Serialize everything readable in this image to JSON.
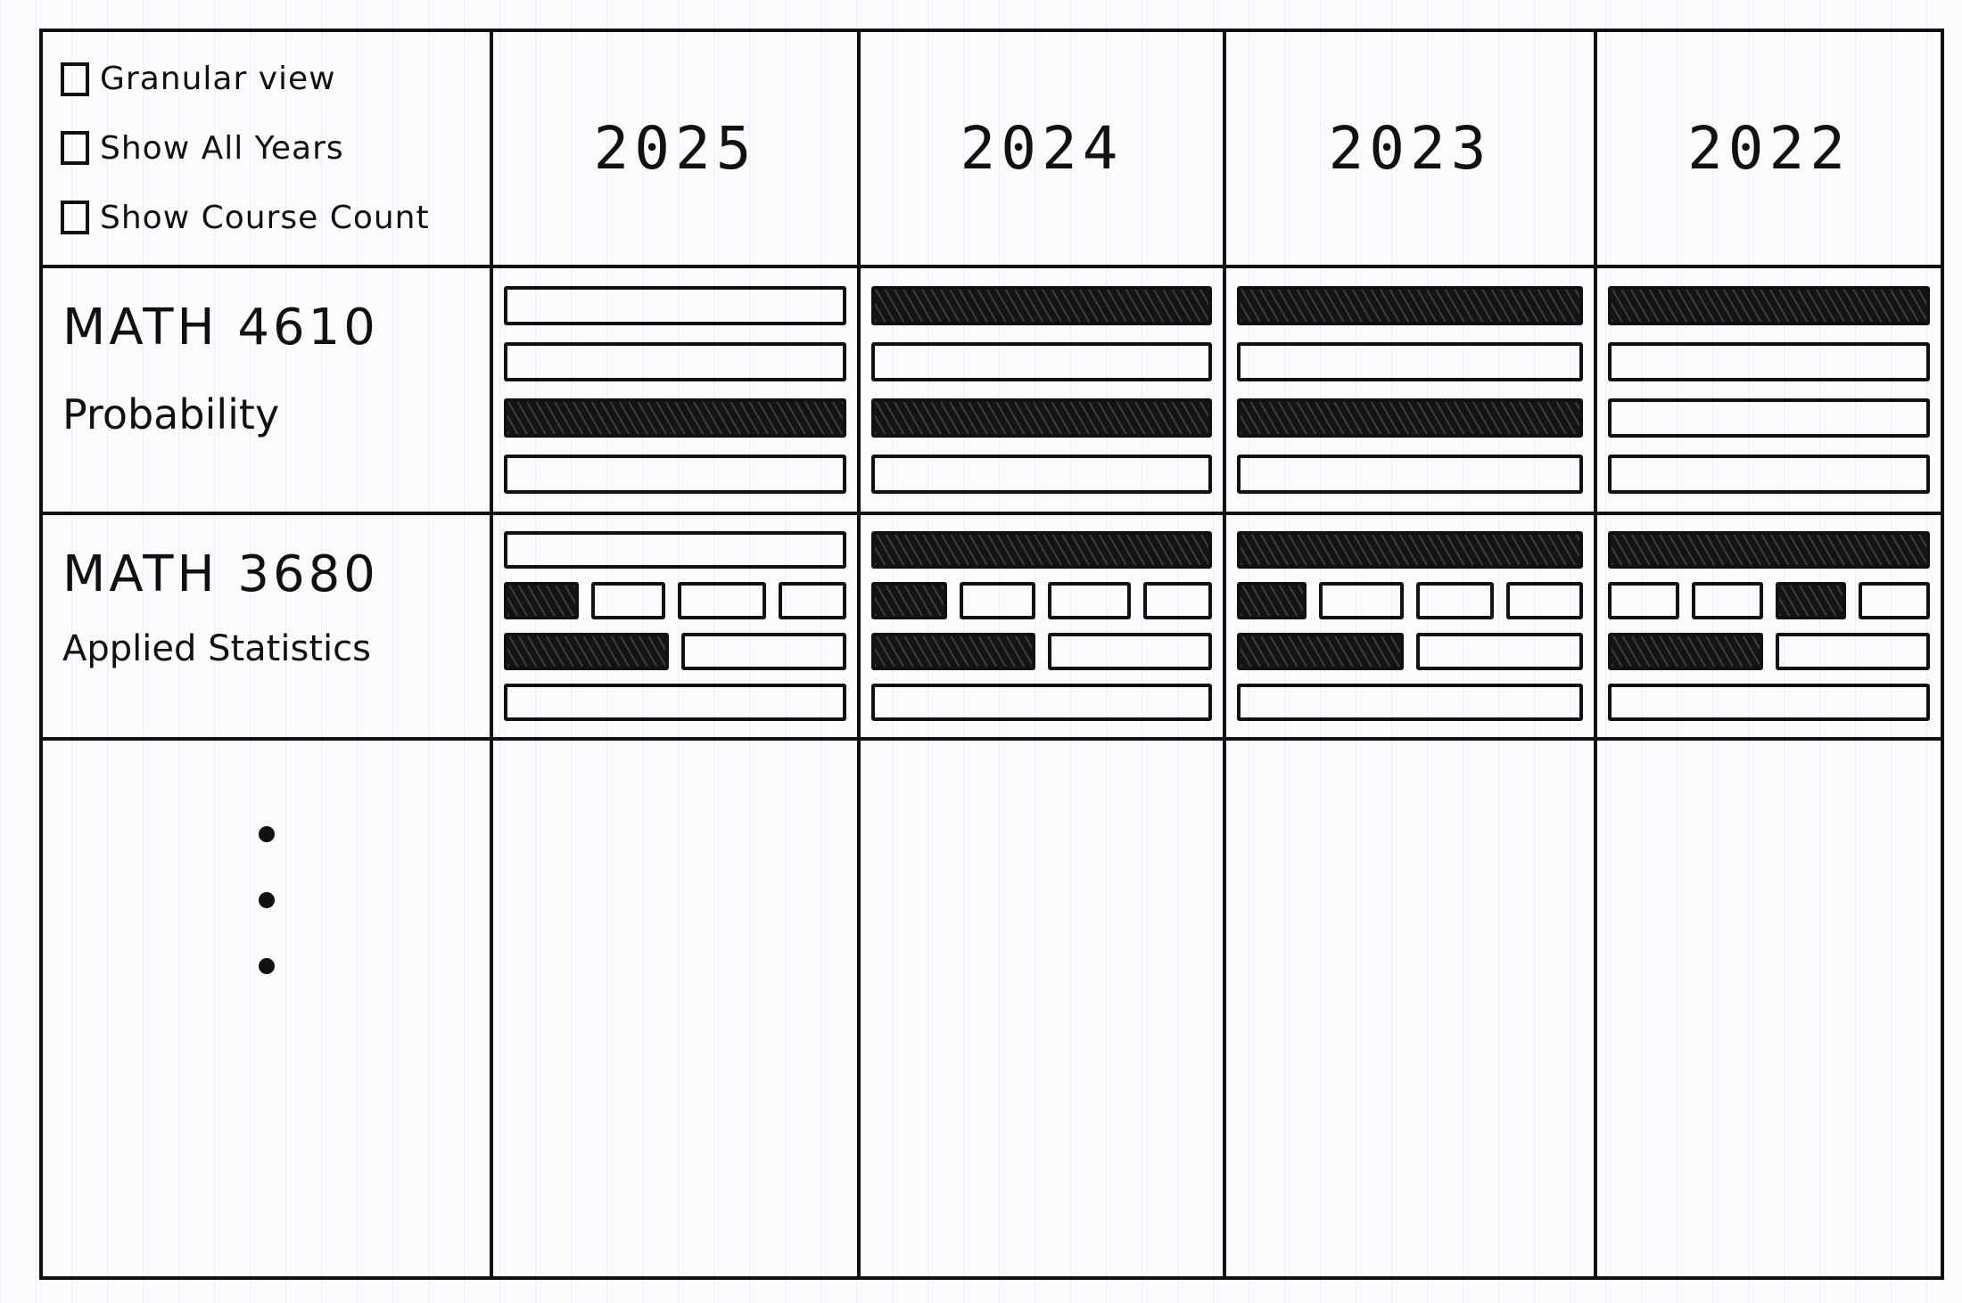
{
  "controls": [
    {
      "label": "Granular view",
      "checked": false
    },
    {
      "label": "Show All Years",
      "checked": false
    },
    {
      "label": "Show Course Count",
      "checked": false
    }
  ],
  "years": [
    "2025",
    "2024",
    "2023",
    "2022"
  ],
  "courses": [
    {
      "code": "MATH 4610",
      "name": "Probability",
      "years": [
        {
          "year": "2025",
          "rows": [
            [
              {
                "w": 1,
                "filled": false
              }
            ],
            [
              {
                "w": 1,
                "filled": false
              }
            ],
            [
              {
                "w": 1,
                "filled": true
              }
            ],
            [
              {
                "w": 1,
                "filled": false
              }
            ]
          ]
        },
        {
          "year": "2024",
          "rows": [
            [
              {
                "w": 1,
                "filled": true
              }
            ],
            [
              {
                "w": 1,
                "filled": false
              }
            ],
            [
              {
                "w": 1,
                "filled": true
              }
            ],
            [
              {
                "w": 1,
                "filled": false
              }
            ]
          ]
        },
        {
          "year": "2023",
          "rows": [
            [
              {
                "w": 1,
                "filled": true
              }
            ],
            [
              {
                "w": 1,
                "filled": false
              }
            ],
            [
              {
                "w": 1,
                "filled": true
              }
            ],
            [
              {
                "w": 1,
                "filled": false
              }
            ]
          ]
        },
        {
          "year": "2022",
          "rows": [
            [
              {
                "w": 1,
                "filled": true
              }
            ],
            [
              {
                "w": 1,
                "filled": false
              }
            ],
            [
              {
                "w": 1,
                "filled": false
              }
            ],
            [
              {
                "w": 1,
                "filled": false
              }
            ]
          ]
        }
      ]
    },
    {
      "code": "MATH 3680",
      "name": "Applied Statistics",
      "years": [
        {
          "year": "2025",
          "rows": [
            [
              {
                "w": 1,
                "filled": false
              }
            ],
            [
              {
                "w": 1,
                "filled": true
              },
              {
                "w": 1,
                "filled": false
              },
              {
                "w": 1.2,
                "filled": false
              },
              {
                "w": 0.9,
                "filled": false
              }
            ],
            [
              {
                "w": 1,
                "filled": true
              },
              {
                "w": 1,
                "filled": false
              }
            ],
            [
              {
                "w": 1,
                "filled": false
              }
            ]
          ]
        },
        {
          "year": "2024",
          "rows": [
            [
              {
                "w": 1,
                "filled": true
              }
            ],
            [
              {
                "w": 1,
                "filled": true
              },
              {
                "w": 1,
                "filled": false
              },
              {
                "w": 1.1,
                "filled": false
              },
              {
                "w": 0.9,
                "filled": false
              }
            ],
            [
              {
                "w": 1,
                "filled": true
              },
              {
                "w": 1,
                "filled": false
              }
            ],
            [
              {
                "w": 1,
                "filled": false
              }
            ]
          ]
        },
        {
          "year": "2023",
          "rows": [
            [
              {
                "w": 1,
                "filled": true
              }
            ],
            [
              {
                "w": 0.8,
                "filled": true
              },
              {
                "w": 1,
                "filled": false
              },
              {
                "w": 0.9,
                "filled": false
              },
              {
                "w": 0.9,
                "filled": false
              }
            ],
            [
              {
                "w": 1,
                "filled": true
              },
              {
                "w": 1,
                "filled": false
              }
            ],
            [
              {
                "w": 1,
                "filled": false
              }
            ]
          ]
        },
        {
          "year": "2022",
          "rows": [
            [
              {
                "w": 1,
                "filled": true
              }
            ],
            [
              {
                "w": 0.9,
                "filled": false
              },
              {
                "w": 0.9,
                "filled": false
              },
              {
                "w": 0.9,
                "filled": true
              },
              {
                "w": 0.9,
                "filled": false
              }
            ],
            [
              {
                "w": 1,
                "filled": true
              },
              {
                "w": 1,
                "filled": false
              }
            ],
            [
              {
                "w": 1,
                "filled": false
              }
            ]
          ]
        }
      ]
    }
  ]
}
